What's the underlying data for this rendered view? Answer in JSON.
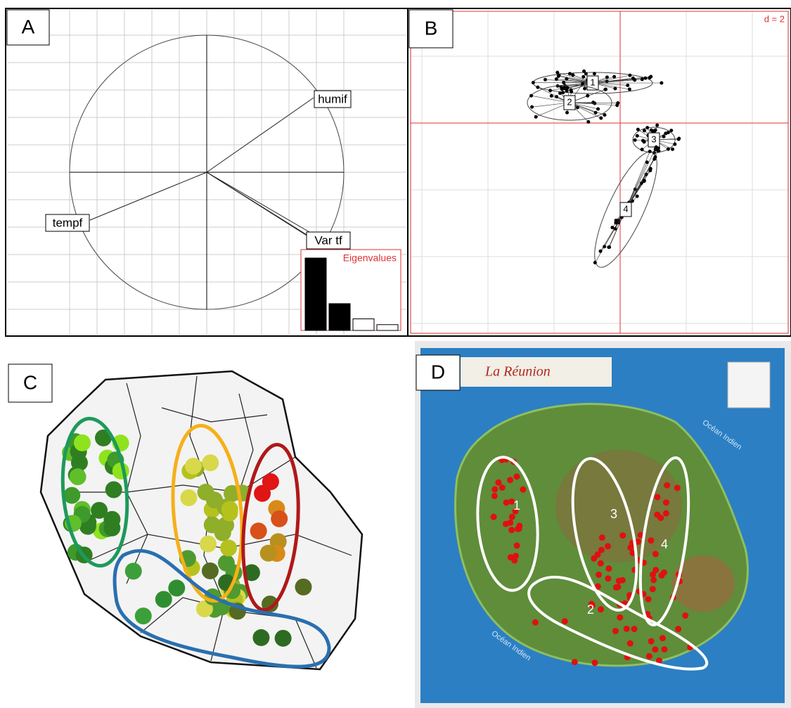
{
  "panels": {
    "A": {
      "label": "A",
      "arrows": [
        {
          "label": "humif"
        },
        {
          "label": "tempf"
        },
        {
          "label": "Var tf"
        }
      ],
      "eigenvalues": {
        "title": "Eigenvalues",
        "values": [
          1,
          0.37,
          0.16,
          0.08
        ]
      }
    },
    "B": {
      "label": "B",
      "scale": "d = 2",
      "groups": [
        "1",
        "2",
        "3",
        "4"
      ]
    },
    "C": {
      "label": "C"
    },
    "D": {
      "label": "D",
      "title": "La Réunion",
      "ocean": [
        "Océan Indien",
        "Océan Indien"
      ],
      "groups": [
        "1",
        "2",
        "3",
        "4"
      ]
    }
  }
}
